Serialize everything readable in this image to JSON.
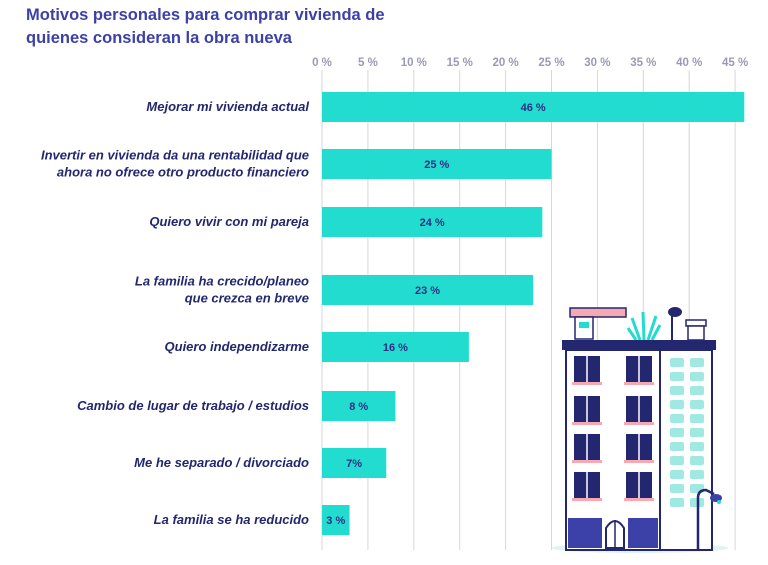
{
  "chart_data": {
    "type": "bar",
    "orientation": "horizontal",
    "title_lines": [
      "Motivos personales para comprar vivienda de",
      "quienes consideran la obra nueva"
    ],
    "categories": [
      [
        "Mejorar mi vivienda actual"
      ],
      [
        "Invertir en vivienda da una rentabilidad que",
        "ahora no ofrece otro producto financiero"
      ],
      [
        "Quiero vivir con mi pareja"
      ],
      [
        "La familia ha crecido/planeo",
        "que crezca en breve"
      ],
      [
        "Quiero independizarme"
      ],
      [
        "Cambio de lugar de trabajo / estudios"
      ],
      [
        "Me he separado / divorciado"
      ],
      [
        "La familia se ha reducido"
      ]
    ],
    "values": [
      46,
      25,
      24,
      23,
      16,
      8,
      7,
      3
    ],
    "value_labels": [
      "46 %",
      "25 %",
      "24 %",
      "23 %",
      "16 %",
      "8 %",
      "7%",
      "3 %"
    ],
    "xticks": [
      0,
      5,
      10,
      15,
      20,
      25,
      30,
      35,
      40,
      45
    ],
    "xtick_labels": [
      "0 %",
      "5 %",
      "10 %",
      "15 %",
      "20 %",
      "25 %",
      "30 %",
      "35 %",
      "40 %",
      "45 %"
    ],
    "xlim": [
      0,
      45
    ],
    "grid": true,
    "colors": {
      "bar": "#22dccf",
      "title": "#3c41a8",
      "label": "#23276f",
      "grid": "#d6d6de"
    }
  }
}
